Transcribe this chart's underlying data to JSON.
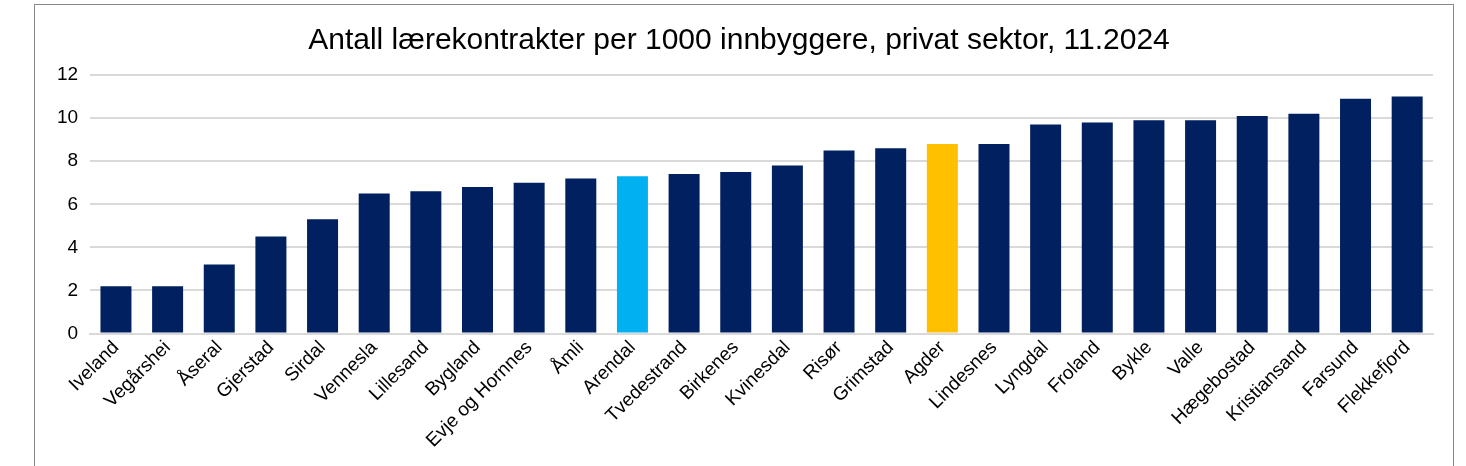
{
  "chart_data": {
    "type": "bar",
    "title": "Antall lærekontrakter per 1000 innbyggere, privat sektor, 11.2024",
    "categories": [
      "Iveland",
      "Vegårshei",
      "Åseral",
      "Gjerstad",
      "Sirdal",
      "Vennesla",
      "Lillesand",
      "Bygland",
      "Evje og Hornnes",
      "Åmli",
      "Arendal",
      "Tvedestrand",
      "Birkenes",
      "Kvinesdal",
      "Risør",
      "Grimstad",
      "Agder",
      "Lindesnes",
      "Lyngdal",
      "Froland",
      "Bykle",
      "Valle",
      "Hægebostad",
      "Kristiansand",
      "Farsund",
      "Flekkefjord"
    ],
    "values": [
      2.2,
      2.2,
      3.2,
      4.5,
      5.3,
      6.5,
      6.6,
      6.8,
      7.0,
      7.2,
      7.3,
      7.4,
      7.5,
      7.8,
      8.5,
      8.6,
      8.8,
      8.8,
      9.7,
      9.8,
      9.9,
      9.9,
      10.1,
      10.2,
      10.9,
      11.0
    ],
    "colors": [
      "#002060",
      "#002060",
      "#002060",
      "#002060",
      "#002060",
      "#002060",
      "#002060",
      "#002060",
      "#002060",
      "#002060",
      "#00b0f0",
      "#002060",
      "#002060",
      "#002060",
      "#002060",
      "#002060",
      "#ffc000",
      "#002060",
      "#002060",
      "#002060",
      "#002060",
      "#002060",
      "#002060",
      "#002060",
      "#002060",
      "#002060"
    ],
    "ylim": [
      0,
      12
    ],
    "yticks": [
      0,
      2,
      4,
      6,
      8,
      10,
      12
    ],
    "grid": "y",
    "legend": false
  }
}
